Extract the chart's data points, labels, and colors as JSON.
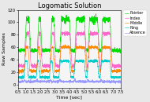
{
  "title": "Logomatic Solution",
  "xlabel": "Time [sec]",
  "ylabel": "Raw Samples",
  "xlim": [
    0.5,
    7.5
  ],
  "ylim": [
    -5,
    120
  ],
  "legend_labels": [
    "Pointer",
    "Index",
    "Middle",
    "Ring",
    "Absence"
  ],
  "colors": [
    "#00dd00",
    "#ff66cc",
    "#ff8800",
    "#00cccc",
    "#9999ff"
  ],
  "title_fontsize": 6,
  "axis_fontsize": 4.5,
  "tick_fontsize": 3.8,
  "legend_fontsize": 3.5
}
